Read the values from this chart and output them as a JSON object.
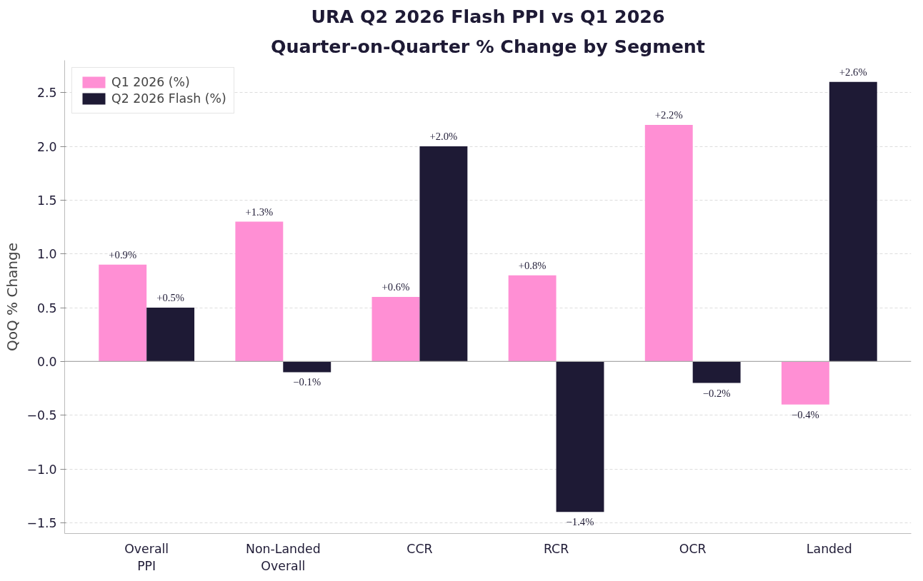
{
  "chart_data": {
    "type": "bar",
    "title": "URA Q2 2026 Flash PPI vs Q1 2026",
    "subtitle": "Quarter-on-Quarter % Change by Segment",
    "ylabel": "QoQ % Change",
    "categories": [
      "Overall\nPPI",
      "Non-Landed\nOverall",
      "CCR",
      "RCR",
      "OCR",
      "Landed"
    ],
    "series": [
      {
        "name": "Q1 2026 (%)",
        "color": "#ff8fd4",
        "values": [
          0.9,
          1.3,
          0.6,
          0.8,
          2.2,
          -0.4
        ],
        "value_labels": [
          "+0.9%",
          "+1.3%",
          "+0.6%",
          "+0.8%",
          "+2.2%",
          "−0.4%"
        ]
      },
      {
        "name": "Q2 2026 Flash (%)",
        "color": "#1e1a35",
        "values": [
          0.5,
          -0.1,
          2.0,
          -1.4,
          -0.2,
          2.6
        ],
        "value_labels": [
          "+0.5%",
          "−0.1%",
          "+2.0%",
          "−1.4%",
          "−0.2%",
          "+2.6%"
        ]
      }
    ],
    "ylim": [
      -1.6,
      2.8
    ],
    "yticks": [
      {
        "value": -1.5,
        "label": "−1.5"
      },
      {
        "value": -1.0,
        "label": "−1.0"
      },
      {
        "value": -0.5,
        "label": "−0.5"
      },
      {
        "value": 0,
        "label": "0.0"
      },
      {
        "value": 0.5,
        "label": "0.5"
      },
      {
        "value": 1.0,
        "label": "1.0"
      },
      {
        "value": 1.5,
        "label": "1.5"
      },
      {
        "value": 2.0,
        "label": "2.0"
      },
      {
        "value": 2.5,
        "label": "2.5"
      }
    ],
    "ref_lines": [
      {
        "axis": "y",
        "value": 0,
        "color": "#aaaaaa",
        "line_style": "solid"
      }
    ],
    "grid": "y",
    "legend": "top left"
  }
}
